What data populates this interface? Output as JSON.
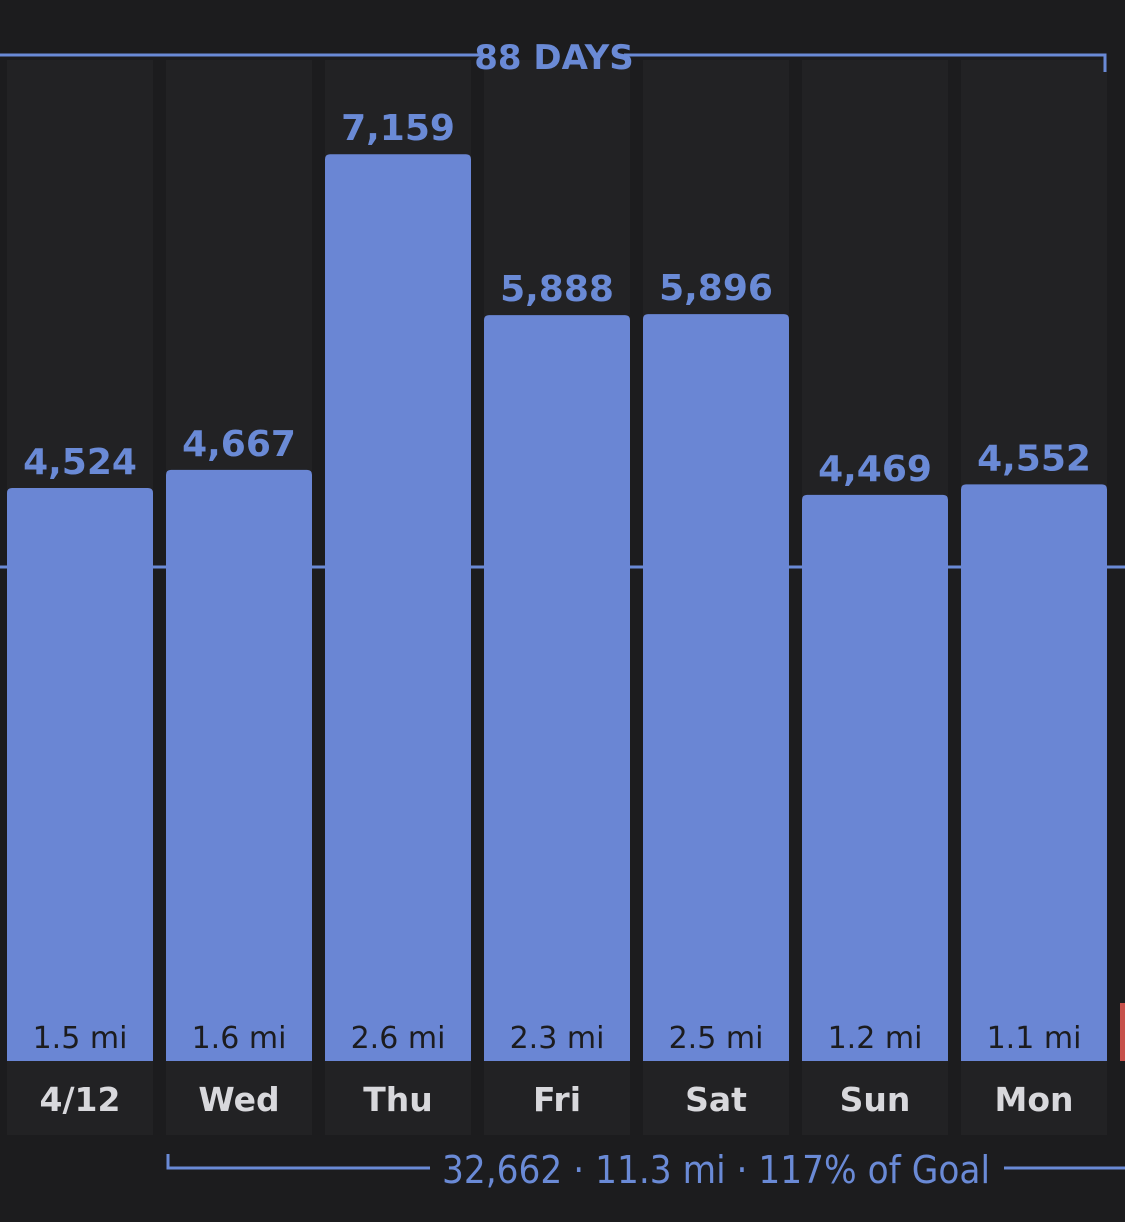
{
  "chart_data": {
    "type": "bar",
    "categories": [
      "4/12",
      "Wed",
      "Thu",
      "Fri",
      "Sat",
      "Sun",
      "Mon"
    ],
    "values": [
      4524,
      4667,
      7159,
      5888,
      5896,
      4469,
      4552
    ],
    "value_labels": [
      "4,524",
      "4,667",
      "7,159",
      "5,888",
      "5,896",
      "4,469",
      "4,552"
    ],
    "distance_labels": [
      "1.5 mi",
      "1.6 mi",
      "2.6 mi",
      "2.3 mi",
      "2.5 mi",
      "1.2 mi",
      "1.1 mi"
    ],
    "goal_line": 3900,
    "ylim": [
      0,
      7800
    ],
    "grid": false,
    "bar_color": "#6a86d4",
    "column_bg_color": "#222224"
  },
  "streak": {
    "label": "88 DAYS"
  },
  "summary": {
    "text": "32,662 · 11.3 mi · 117% of Goal"
  },
  "colors": {
    "accent": "#6a8ad6",
    "background": "#1c1c1e",
    "day_label": "#d8d8dc",
    "next_bar_partial": "#c6504a"
  }
}
